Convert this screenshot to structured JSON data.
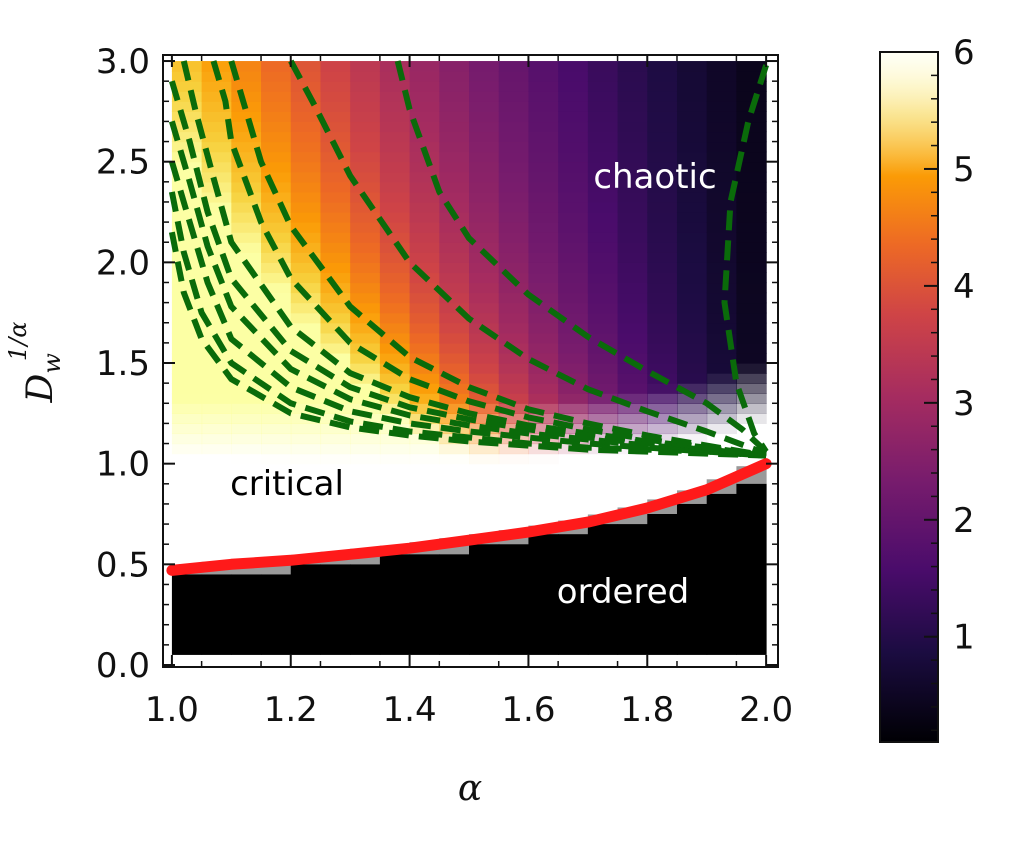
{
  "chart_data": {
    "type": "heatmap",
    "title": "",
    "xlabel": "α",
    "ylabel": {
      "base": "D",
      "sub": "w",
      "sup": "1/α"
    },
    "xlim": [
      0.985,
      2.02
    ],
    "ylim": [
      -0.01,
      3.03
    ],
    "x_ticks": [
      {
        "value": 1.0,
        "label": "1.0"
      },
      {
        "value": 1.2,
        "label": "1.2"
      },
      {
        "value": 1.4,
        "label": "1.4"
      },
      {
        "value": 1.6,
        "label": "1.6"
      },
      {
        "value": 1.8,
        "label": "1.8"
      },
      {
        "value": 2.0,
        "label": "2.0"
      }
    ],
    "y_ticks": [
      {
        "value": 0.0,
        "label": "0.0"
      },
      {
        "value": 0.5,
        "label": "0.5"
      },
      {
        "value": 1.0,
        "label": "1.0"
      },
      {
        "value": 1.5,
        "label": "1.5"
      },
      {
        "value": 2.0,
        "label": "2.0"
      },
      {
        "value": 2.5,
        "label": "2.5"
      },
      {
        "value": 3.0,
        "label": "3.0"
      }
    ],
    "colorbar": {
      "range": [
        0.1,
        6
      ],
      "ticks": [
        {
          "value": 1,
          "label": "1"
        },
        {
          "value": 2,
          "label": "2"
        },
        {
          "value": 3,
          "label": "3"
        },
        {
          "value": 4,
          "label": "4"
        },
        {
          "value": 5,
          "label": "5"
        },
        {
          "value": 6,
          "label": "6"
        }
      ],
      "colormap": "inferno"
    },
    "region_labels": [
      {
        "text": "chaotic",
        "x": 1.82,
        "y": 2.45,
        "color": "#ffffff"
      },
      {
        "text": "critical",
        "x": 1.23,
        "y": 0.9,
        "color": "#000000"
      },
      {
        "text": "ordered",
        "x": 1.78,
        "y": 0.36,
        "color": "#ffffff"
      }
    ],
    "critical_boundary": {
      "color": "#ff1a1a",
      "x": [
        1.0,
        1.1,
        1.2,
        1.3,
        1.4,
        1.5,
        1.6,
        1.7,
        1.8,
        1.9,
        2.0
      ],
      "y": [
        0.47,
        0.5,
        0.52,
        0.55,
        0.58,
        0.62,
        0.66,
        0.71,
        0.78,
        0.87,
        1.0
      ]
    },
    "contours": {
      "color": "#0a6b0a",
      "style": "dashed",
      "lines": [
        {
          "x": [
            1.0,
            1.02,
            1.05,
            1.1,
            1.2,
            1.3,
            1.4,
            1.5,
            1.6,
            1.7,
            1.8,
            1.9,
            2.0
          ],
          "y": [
            2.15,
            1.85,
            1.62,
            1.42,
            1.25,
            1.18,
            1.14,
            1.11,
            1.09,
            1.07,
            1.06,
            1.05,
            1.04
          ]
        },
        {
          "x": [
            1.0,
            1.02,
            1.05,
            1.1,
            1.2,
            1.3,
            1.4,
            1.5,
            1.6,
            1.7,
            1.8,
            1.9,
            2.0
          ],
          "y": [
            2.35,
            2.05,
            1.75,
            1.5,
            1.3,
            1.21,
            1.16,
            1.13,
            1.1,
            1.08,
            1.07,
            1.06,
            1.04
          ]
        },
        {
          "x": [
            1.0,
            1.03,
            1.06,
            1.1,
            1.2,
            1.3,
            1.4,
            1.5,
            1.6,
            1.7,
            1.8,
            1.9,
            2.0
          ],
          "y": [
            2.5,
            2.2,
            1.9,
            1.62,
            1.38,
            1.26,
            1.2,
            1.16,
            1.13,
            1.1,
            1.08,
            1.06,
            1.04
          ]
        },
        {
          "x": [
            1.0,
            1.03,
            1.06,
            1.1,
            1.2,
            1.3,
            1.4,
            1.5,
            1.6,
            1.7,
            1.8,
            1.9,
            2.0
          ],
          "y": [
            2.7,
            2.4,
            2.08,
            1.78,
            1.47,
            1.32,
            1.24,
            1.19,
            1.15,
            1.12,
            1.09,
            1.07,
            1.04
          ]
        },
        {
          "x": [
            1.0,
            1.03,
            1.06,
            1.1,
            1.2,
            1.3,
            1.4,
            1.5,
            1.6,
            1.7,
            1.8,
            1.9,
            2.0
          ],
          "y": [
            2.9,
            2.6,
            2.25,
            1.92,
            1.56,
            1.38,
            1.28,
            1.22,
            1.17,
            1.13,
            1.1,
            1.07,
            1.04
          ]
        },
        {
          "x": [
            1.02,
            1.04,
            1.07,
            1.1,
            1.2,
            1.3,
            1.4,
            1.5,
            1.6,
            1.7,
            1.8,
            1.9,
            2.0
          ],
          "y": [
            3.0,
            2.75,
            2.42,
            2.1,
            1.68,
            1.45,
            1.33,
            1.25,
            1.19,
            1.15,
            1.11,
            1.08,
            1.04
          ]
        },
        {
          "x": [
            1.07,
            1.09,
            1.1,
            1.15,
            1.2,
            1.3,
            1.4,
            1.5,
            1.6,
            1.7,
            1.8,
            1.9,
            2.0
          ],
          "y": [
            3.0,
            2.8,
            2.6,
            2.2,
            1.92,
            1.6,
            1.42,
            1.31,
            1.23,
            1.17,
            1.12,
            1.08,
            1.04
          ]
        },
        {
          "x": [
            1.1,
            1.12,
            1.15,
            1.2,
            1.3,
            1.4,
            1.5,
            1.6,
            1.7,
            1.8,
            1.9,
            2.0
          ],
          "y": [
            3.0,
            2.8,
            2.5,
            2.18,
            1.78,
            1.53,
            1.38,
            1.27,
            1.2,
            1.14,
            1.09,
            1.04
          ]
        },
        {
          "x": [
            1.2,
            1.24,
            1.3,
            1.4,
            1.5,
            1.6,
            1.7,
            1.8,
            1.9,
            2.0
          ],
          "y": [
            3.0,
            2.78,
            2.43,
            2.0,
            1.72,
            1.52,
            1.37,
            1.26,
            1.16,
            1.05
          ]
        },
        {
          "x": [
            1.38,
            1.4,
            1.45,
            1.5,
            1.6,
            1.7,
            1.8,
            1.9,
            1.96,
            2.0
          ],
          "y": [
            3.0,
            2.76,
            2.35,
            2.12,
            1.84,
            1.63,
            1.46,
            1.3,
            1.17,
            1.06
          ]
        },
        {
          "x": [
            2.0,
            1.97,
            1.94,
            1.93,
            1.95,
            1.98,
            2.0
          ],
          "y": [
            2.98,
            2.7,
            2.3,
            1.8,
            1.4,
            1.15,
            1.06
          ]
        }
      ]
    }
  }
}
